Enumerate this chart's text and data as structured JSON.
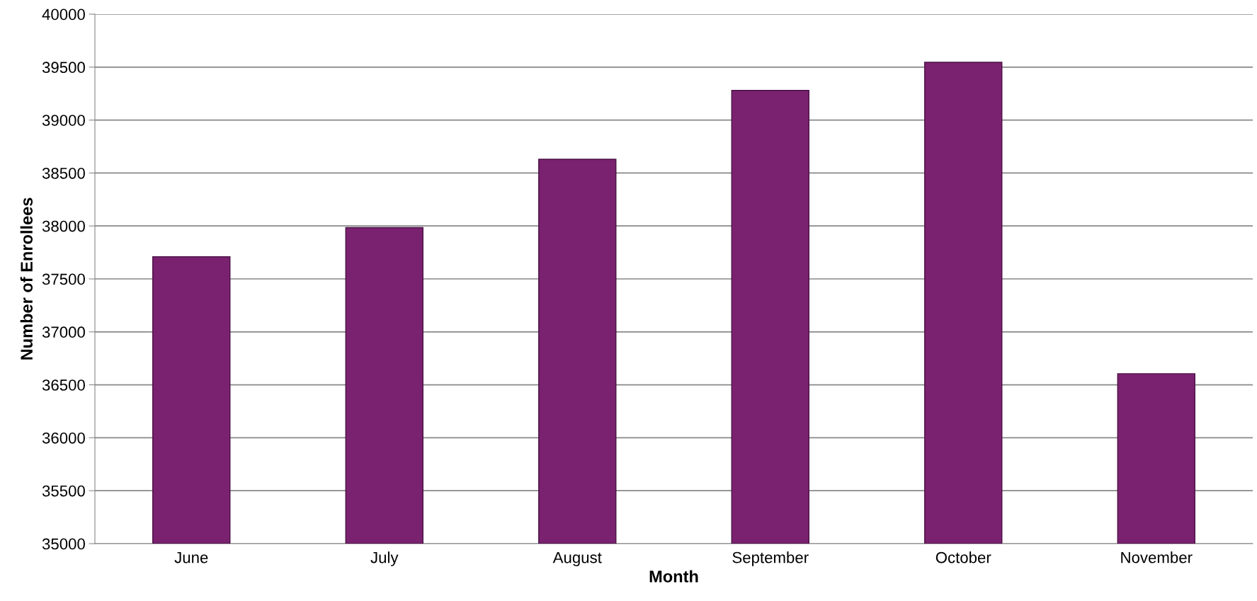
{
  "chart_data": {
    "type": "bar",
    "xlabel": "Month",
    "ylabel": "Number of Enrollees",
    "categories": [
      "June",
      "July",
      "August",
      "September",
      "October",
      "November"
    ],
    "values": [
      37710,
      37985,
      38630,
      39280,
      39545,
      36605
    ],
    "color": "#7a2270",
    "ylim": [
      35000,
      40000
    ],
    "yticks": [
      35000,
      35500,
      36000,
      36500,
      37000,
      37500,
      38000,
      38500,
      39000,
      39500,
      40000
    ],
    "grid": "y"
  }
}
